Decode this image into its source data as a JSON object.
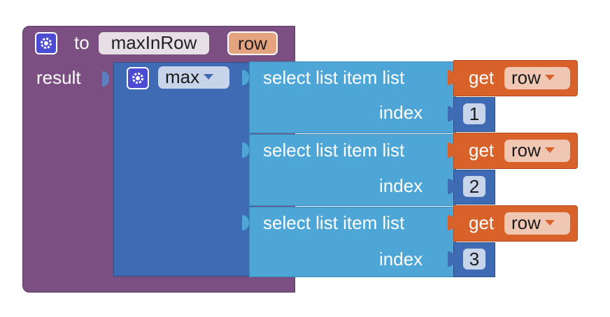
{
  "procedure": {
    "keyword": "to",
    "name": "maxInRow",
    "param": "row",
    "result_label": "result"
  },
  "max_block": {
    "label": "max",
    "icon": "gear-icon"
  },
  "select_blocks": [
    {
      "label": "select list item  list",
      "index_label": "index",
      "get_label": "get",
      "var": "row",
      "index": "1"
    },
    {
      "label": "select list item  list",
      "index_label": "index",
      "get_label": "get",
      "var": "row",
      "index": "2"
    },
    {
      "label": "select list item  list",
      "index_label": "index",
      "get_label": "get",
      "var": "row",
      "index": "3"
    }
  ],
  "colors": {
    "procedure": "#7b4f82",
    "math": "#3f6bb4",
    "list": "#4da6d5",
    "variable": "#d9622b",
    "dropdown_pill": "#e6e0e6"
  }
}
